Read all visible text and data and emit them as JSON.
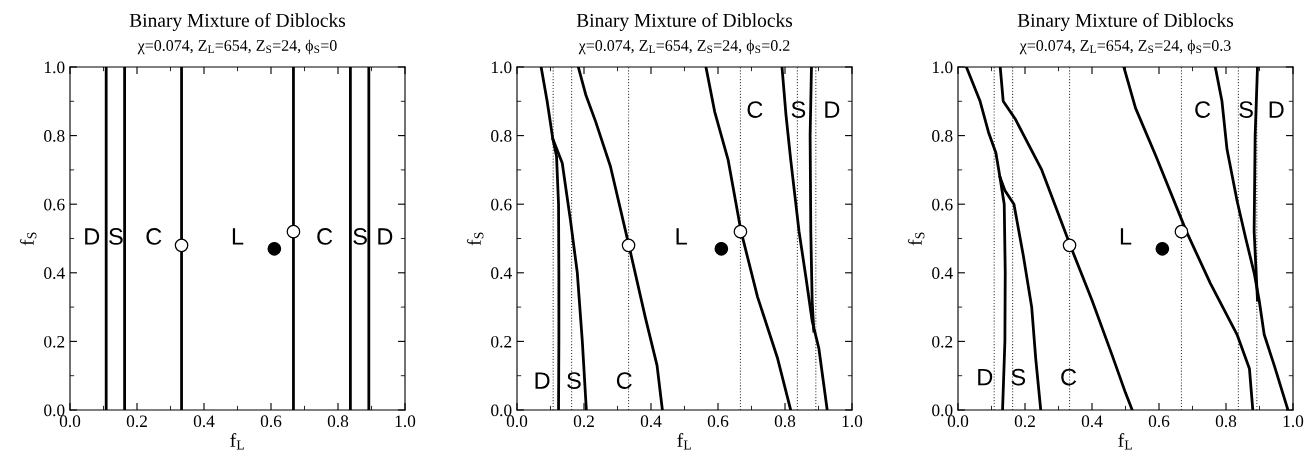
{
  "chart_data": [
    {
      "type": "line",
      "title": "Binary Mixture of Diblocks",
      "subtitle": "χ=0.074, Z$_{L}$=654, Z$_{S}$=24, ϕ$_{S}$=0",
      "xlabel": "f$_{L}$",
      "ylabel": "f$_{S}$",
      "xlim": [
        0,
        1
      ],
      "ylim": [
        0,
        1
      ],
      "xticks": [
        {
          "value": 0,
          "label": "0.0"
        },
        {
          "value": 0.1,
          "label": null
        },
        {
          "value": 0.2,
          "label": "0.2"
        },
        {
          "value": 0.3,
          "label": null
        },
        {
          "value": 0.4,
          "label": "0.4"
        },
        {
          "value": 0.5,
          "label": null
        },
        {
          "value": 0.6,
          "label": "0.6"
        },
        {
          "value": 0.7,
          "label": null
        },
        {
          "value": 0.8,
          "label": "0.8"
        },
        {
          "value": 0.9,
          "label": null
        },
        {
          "value": 1,
          "label": "1.0"
        }
      ],
      "yticks": [
        {
          "value": 0,
          "label": "0.0"
        },
        {
          "value": 0.1,
          "label": null
        },
        {
          "value": 0.2,
          "label": "0.2"
        },
        {
          "value": 0.3,
          "label": null
        },
        {
          "value": 0.4,
          "label": "0.4"
        },
        {
          "value": 0.5,
          "label": null
        },
        {
          "value": 0.6,
          "label": "0.6"
        },
        {
          "value": 0.7,
          "label": null
        },
        {
          "value": 0.8,
          "label": "0.8"
        },
        {
          "value": 0.9,
          "label": null
        },
        {
          "value": 1,
          "label": "1.0"
        }
      ],
      "series": [
        {
          "color": "#000000",
          "x": [
            0.108,
            0.108
          ],
          "values": [
            0,
            1
          ]
        },
        {
          "color": "#000000",
          "x": [
            0.163,
            0.163
          ],
          "values": [
            0,
            1
          ]
        },
        {
          "color": "#000000",
          "x": [
            0.333,
            0.333
          ],
          "values": [
            0,
            1
          ]
        },
        {
          "color": "#000000",
          "x": [
            0.667,
            0.667
          ],
          "values": [
            0,
            1
          ]
        },
        {
          "color": "#000000",
          "x": [
            0.837,
            0.837
          ],
          "values": [
            0,
            1
          ]
        },
        {
          "color": "#000000",
          "x": [
            0.892,
            0.892
          ],
          "values": [
            0,
            1
          ]
        },
        {
          "type": "scatter",
          "marker": "circle",
          "color": "#ffffff",
          "x": [
            0.333,
            0.667
          ],
          "values": [
            0.48,
            0.52
          ]
        },
        {
          "type": "scatter",
          "marker": "circle",
          "color": "#000000",
          "x": [
            0.61
          ],
          "values": [
            0.47
          ]
        }
      ],
      "annotations": [
        "D",
        "S",
        "C",
        "L",
        "C",
        "S",
        "D"
      ]
    },
    {
      "type": "line",
      "title": "Binary Mixture of Diblocks",
      "subtitle": "χ=0.074, Z$_{L}$=654, Z$_{S}$=24, ϕ$_{S}$=0.2",
      "xlabel": "f$_{L}$",
      "ylabel": "f$_{S}$",
      "xlim": [
        0,
        1
      ],
      "ylim": [
        0,
        1
      ],
      "xticks": [
        {
          "value": 0,
          "label": "0.0"
        },
        {
          "value": 0.1,
          "label": null
        },
        {
          "value": 0.2,
          "label": "0.2"
        },
        {
          "value": 0.3,
          "label": null
        },
        {
          "value": 0.4,
          "label": "0.4"
        },
        {
          "value": 0.5,
          "label": null
        },
        {
          "value": 0.6,
          "label": "0.6"
        },
        {
          "value": 0.7,
          "label": null
        },
        {
          "value": 0.8,
          "label": "0.8"
        },
        {
          "value": 0.9,
          "label": null
        },
        {
          "value": 1,
          "label": "1.0"
        }
      ],
      "yticks": [
        {
          "value": 0,
          "label": "0.0"
        },
        {
          "value": 0.1,
          "label": null
        },
        {
          "value": 0.2,
          "label": "0.2"
        },
        {
          "value": 0.3,
          "label": null
        },
        {
          "value": 0.4,
          "label": "0.4"
        },
        {
          "value": 0.5,
          "label": null
        },
        {
          "value": 0.6,
          "label": "0.6"
        },
        {
          "value": 0.7,
          "label": null
        },
        {
          "value": 0.8,
          "label": "0.8"
        },
        {
          "value": 0.9,
          "label": null
        },
        {
          "value": 1,
          "label": "1.0"
        }
      ],
      "ref_lines": [
        {
          "axis": "x",
          "value": 0.108,
          "line_style": "dotted"
        },
        {
          "axis": "x",
          "value": 0.163,
          "line_style": "dotted"
        },
        {
          "axis": "x",
          "value": 0.333,
          "line_style": "dotted"
        },
        {
          "axis": "x",
          "value": 0.667,
          "line_style": "dotted"
        },
        {
          "axis": "x",
          "value": 0.837,
          "line_style": "dotted"
        },
        {
          "axis": "x",
          "value": 0.892,
          "line_style": "dotted"
        }
      ],
      "series": [
        {
          "color": "#000000",
          "x": [
            0.072,
            0.09,
            0.107,
            0.118,
            0.124,
            0.125,
            0.125,
            0.124
          ],
          "values": [
            1,
            0.9,
            0.79,
            0.74,
            0.6,
            0.4,
            0.2,
            0
          ]
        },
        {
          "color": "#000000",
          "x": [
            0.107,
            0.135,
            0.16,
            0.18,
            0.195,
            0.207
          ],
          "values": [
            0.79,
            0.72,
            0.55,
            0.4,
            0.2,
            0
          ]
        },
        {
          "color": "#000000",
          "x": [
            0.183,
            0.205,
            0.235,
            0.279,
            0.334,
            0.383,
            0.418,
            0.434
          ],
          "values": [
            1,
            0.92,
            0.84,
            0.71,
            0.48,
            0.27,
            0.13,
            0
          ]
        },
        {
          "color": "#000000",
          "x": [
            0.564,
            0.59,
            0.63,
            0.669,
            0.718,
            0.778,
            0.817
          ],
          "values": [
            1,
            0.87,
            0.73,
            0.52,
            0.33,
            0.15,
            0
          ]
        },
        {
          "color": "#000000",
          "x": [
            0.791,
            0.803,
            0.817,
            0.842,
            0.862,
            0.881,
            0.901,
            0.926
          ],
          "values": [
            1,
            0.86,
            0.73,
            0.52,
            0.39,
            0.26,
            0.18,
            0
          ]
        },
        {
          "color": "#000000",
          "x": [
            0.879,
            0.875,
            0.877,
            0.881,
            0.886
          ],
          "values": [
            1,
            0.8,
            0.52,
            0.32,
            0.23
          ]
        },
        {
          "type": "scatter",
          "marker": "circle",
          "color": "#ffffff",
          "x": [
            0.333,
            0.667
          ],
          "values": [
            0.48,
            0.52
          ]
        },
        {
          "type": "scatter",
          "marker": "circle",
          "color": "#000000",
          "x": [
            0.61
          ],
          "values": [
            0.47
          ]
        }
      ],
      "annotations": [
        "D",
        "S",
        "C",
        "L",
        "C",
        "S",
        "D"
      ]
    },
    {
      "type": "line",
      "title": "Binary Mixture of Diblocks",
      "subtitle": "χ=0.074, Z$_{L}$=654, Z$_{S}$=24, ϕ$_{S}$=0.3",
      "xlabel": "f$_{L}$",
      "ylabel": "f$_{S}$",
      "xlim": [
        0,
        1
      ],
      "ylim": [
        0,
        1
      ],
      "xticks": [
        {
          "value": 0,
          "label": "0.0"
        },
        {
          "value": 0.1,
          "label": null
        },
        {
          "value": 0.2,
          "label": "0.2"
        },
        {
          "value": 0.3,
          "label": null
        },
        {
          "value": 0.4,
          "label": "0.4"
        },
        {
          "value": 0.5,
          "label": null
        },
        {
          "value": 0.6,
          "label": "0.6"
        },
        {
          "value": 0.7,
          "label": null
        },
        {
          "value": 0.8,
          "label": "0.8"
        },
        {
          "value": 0.9,
          "label": null
        },
        {
          "value": 1,
          "label": "1.0"
        }
      ],
      "yticks": [
        {
          "value": 0,
          "label": "0.0"
        },
        {
          "value": 0.1,
          "label": null
        },
        {
          "value": 0.2,
          "label": "0.2"
        },
        {
          "value": 0.3,
          "label": null
        },
        {
          "value": 0.4,
          "label": "0.4"
        },
        {
          "value": 0.5,
          "label": null
        },
        {
          "value": 0.6,
          "label": "0.6"
        },
        {
          "value": 0.7,
          "label": null
        },
        {
          "value": 0.8,
          "label": "0.8"
        },
        {
          "value": 0.9,
          "label": null
        },
        {
          "value": 1,
          "label": "1.0"
        }
      ],
      "ref_lines": [
        {
          "axis": "x",
          "value": 0.108,
          "line_style": "dotted"
        },
        {
          "axis": "x",
          "value": 0.163,
          "line_style": "dotted"
        },
        {
          "axis": "x",
          "value": 0.333,
          "line_style": "dotted"
        },
        {
          "axis": "x",
          "value": 0.667,
          "line_style": "dotted"
        },
        {
          "axis": "x",
          "value": 0.837,
          "line_style": "dotted"
        },
        {
          "axis": "x",
          "value": 0.892,
          "line_style": "dotted"
        }
      ],
      "series": [
        {
          "color": "#000000",
          "x": [
            0.025,
            0.066,
            0.091,
            0.113,
            0.125,
            0.138,
            0.141,
            0.14,
            0.133
          ],
          "values": [
            1,
            0.9,
            0.81,
            0.75,
            0.68,
            0.6,
            0.4,
            0.2,
            0
          ]
        },
        {
          "color": "#000000",
          "x": [
            0.125,
            0.14,
            0.167,
            0.195,
            0.22,
            0.232,
            0.247
          ],
          "values": [
            0.68,
            0.64,
            0.6,
            0.45,
            0.3,
            0.15,
            0
          ]
        },
        {
          "color": "#000000",
          "x": [
            0.126,
            0.135,
            0.17,
            0.25,
            0.335,
            0.4,
            0.46,
            0.5,
            0.52
          ],
          "values": [
            1,
            0.9,
            0.85,
            0.7,
            0.48,
            0.32,
            0.16,
            0.05,
            0
          ]
        },
        {
          "color": "#000000",
          "x": [
            0.495,
            0.53,
            0.591,
            0.682,
            0.753,
            0.833,
            0.87,
            0.88
          ],
          "values": [
            1,
            0.88,
            0.74,
            0.52,
            0.37,
            0.22,
            0.12,
            0
          ]
        },
        {
          "color": "#000000",
          "x": [
            0.768,
            0.788,
            0.803,
            0.833,
            0.859,
            0.884,
            0.899,
            0.914,
            0.944,
            0.985
          ],
          "values": [
            1,
            0.9,
            0.76,
            0.61,
            0.5,
            0.4,
            0.32,
            0.22,
            0.13,
            0
          ]
        },
        {
          "color": "#000000",
          "x": [
            0.894,
            0.887,
            0.884,
            0.894
          ],
          "values": [
            1,
            0.8,
            0.52,
            0.32
          ]
        },
        {
          "type": "scatter",
          "marker": "circle",
          "color": "#ffffff",
          "x": [
            0.333,
            0.667
          ],
          "values": [
            0.48,
            0.52
          ]
        },
        {
          "type": "scatter",
          "marker": "circle",
          "color": "#000000",
          "x": [
            0.61
          ],
          "values": [
            0.47
          ]
        }
      ],
      "annotations": [
        "D",
        "S",
        "C",
        "L",
        "C",
        "S",
        "D"
      ]
    }
  ]
}
